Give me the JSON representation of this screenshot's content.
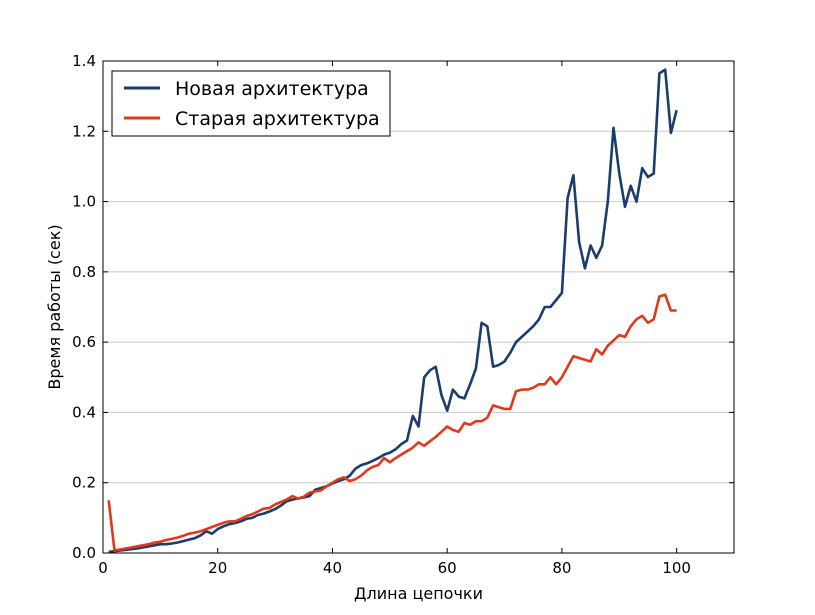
{
  "chart_data": {
    "type": "line",
    "title": "",
    "xlabel": "Длина цепочки",
    "ylabel": "Время работы (сек)",
    "xlim": [
      0,
      110
    ],
    "ylim": [
      0,
      1.4
    ],
    "xticks": [
      "0",
      "20",
      "40",
      "60",
      "80",
      "100"
    ],
    "yticks": [
      "0.0",
      "0.2",
      "0.4",
      "0.6",
      "0.8",
      "1.0",
      "1.2",
      "1.4"
    ],
    "grid": "horizontal",
    "legend_position": "top-left",
    "x": [
      1,
      2,
      3,
      4,
      5,
      6,
      7,
      8,
      9,
      10,
      11,
      12,
      13,
      14,
      15,
      16,
      17,
      18,
      19,
      20,
      21,
      22,
      23,
      24,
      25,
      26,
      27,
      28,
      29,
      30,
      31,
      32,
      33,
      34,
      35,
      36,
      37,
      38,
      39,
      40,
      41,
      42,
      43,
      44,
      45,
      46,
      47,
      48,
      49,
      50,
      51,
      52,
      53,
      54,
      55,
      56,
      57,
      58,
      59,
      60,
      61,
      62,
      63,
      64,
      65,
      66,
      67,
      68,
      69,
      70,
      71,
      72,
      73,
      74,
      75,
      76,
      77,
      78,
      79,
      80,
      81,
      82,
      83,
      84,
      85,
      86,
      87,
      88,
      89,
      90,
      91,
      92,
      93,
      94,
      95,
      96,
      97,
      98,
      99,
      100
    ],
    "series": [
      {
        "name": "Новая архитектура",
        "color": "#1a3d6e",
        "values": [
          0.003,
          0.005,
          0.007,
          0.009,
          0.011,
          0.013,
          0.016,
          0.019,
          0.022,
          0.025,
          0.025,
          0.027,
          0.03,
          0.034,
          0.038,
          0.042,
          0.05,
          0.062,
          0.055,
          0.068,
          0.076,
          0.082,
          0.085,
          0.09,
          0.097,
          0.1,
          0.108,
          0.112,
          0.118,
          0.125,
          0.135,
          0.147,
          0.152,
          0.155,
          0.158,
          0.162,
          0.18,
          0.185,
          0.19,
          0.198,
          0.205,
          0.21,
          0.22,
          0.24,
          0.25,
          0.255,
          0.262,
          0.27,
          0.28,
          0.285,
          0.295,
          0.31,
          0.32,
          0.39,
          0.36,
          0.5,
          0.52,
          0.53,
          0.45,
          0.405,
          0.465,
          0.445,
          0.44,
          0.48,
          0.525,
          0.655,
          0.645,
          0.53,
          0.535,
          0.545,
          0.57,
          0.6,
          0.615,
          0.63,
          0.645,
          0.665,
          0.7,
          0.7,
          0.72,
          0.74,
          1.01,
          1.075,
          0.885,
          0.81,
          0.875,
          0.84,
          0.875,
          1.0,
          1.21,
          1.08,
          0.985,
          1.045,
          1.0,
          1.095,
          1.07,
          1.08,
          1.365,
          1.375,
          1.195,
          1.26
        ]
      },
      {
        "name": "Старая архитектура",
        "color": "#e0391a",
        "values": [
          0.15,
          0.007,
          0.01,
          0.013,
          0.016,
          0.019,
          0.022,
          0.025,
          0.03,
          0.032,
          0.037,
          0.04,
          0.044,
          0.049,
          0.055,
          0.058,
          0.062,
          0.068,
          0.074,
          0.08,
          0.086,
          0.09,
          0.09,
          0.097,
          0.105,
          0.11,
          0.118,
          0.126,
          0.128,
          0.138,
          0.145,
          0.152,
          0.162,
          0.155,
          0.16,
          0.172,
          0.175,
          0.178,
          0.19,
          0.2,
          0.21,
          0.215,
          0.205,
          0.21,
          0.22,
          0.235,
          0.245,
          0.25,
          0.27,
          0.258,
          0.27,
          0.28,
          0.29,
          0.3,
          0.315,
          0.305,
          0.318,
          0.33,
          0.345,
          0.36,
          0.35,
          0.345,
          0.37,
          0.365,
          0.375,
          0.375,
          0.385,
          0.42,
          0.415,
          0.41,
          0.41,
          0.46,
          0.465,
          0.465,
          0.47,
          0.48,
          0.48,
          0.5,
          0.48,
          0.5,
          0.53,
          0.56,
          0.555,
          0.55,
          0.545,
          0.58,
          0.565,
          0.59,
          0.605,
          0.62,
          0.615,
          0.645,
          0.665,
          0.675,
          0.655,
          0.665,
          0.73,
          0.735,
          0.69,
          0.69
        ]
      }
    ]
  }
}
